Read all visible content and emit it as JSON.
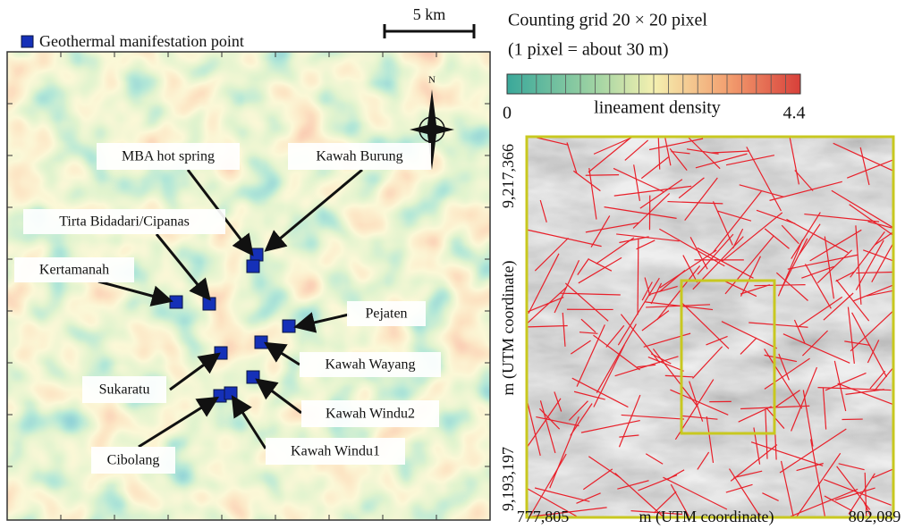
{
  "scale": "5 km",
  "legend": "Geothermal manifestation point",
  "labels": [
    "MBA hot spring",
    "Kawah Burung",
    "Tirta Bidadari/Cipanas",
    "Kertamanah",
    "Pejaten",
    "Kawah Wayang",
    "Sukaratu",
    "Kawah Windu2",
    "Cibolang",
    "Kawah Windu1"
  ],
  "compass": "N",
  "colorbar": {
    "title_line1": "Counting grid 20 × 20 pixel",
    "title_line2": "(1 pixel = about 30 m)",
    "min": "0",
    "label": "lineament density",
    "max": "4.4"
  },
  "relief": {
    "y_top": "9,217,366",
    "y_bottom": "9,193,197",
    "y_title": "m (UTM coordinate)",
    "x_left": "777,805",
    "x_title": "m (UTM coordinate)",
    "x_right": "802,089"
  }
}
